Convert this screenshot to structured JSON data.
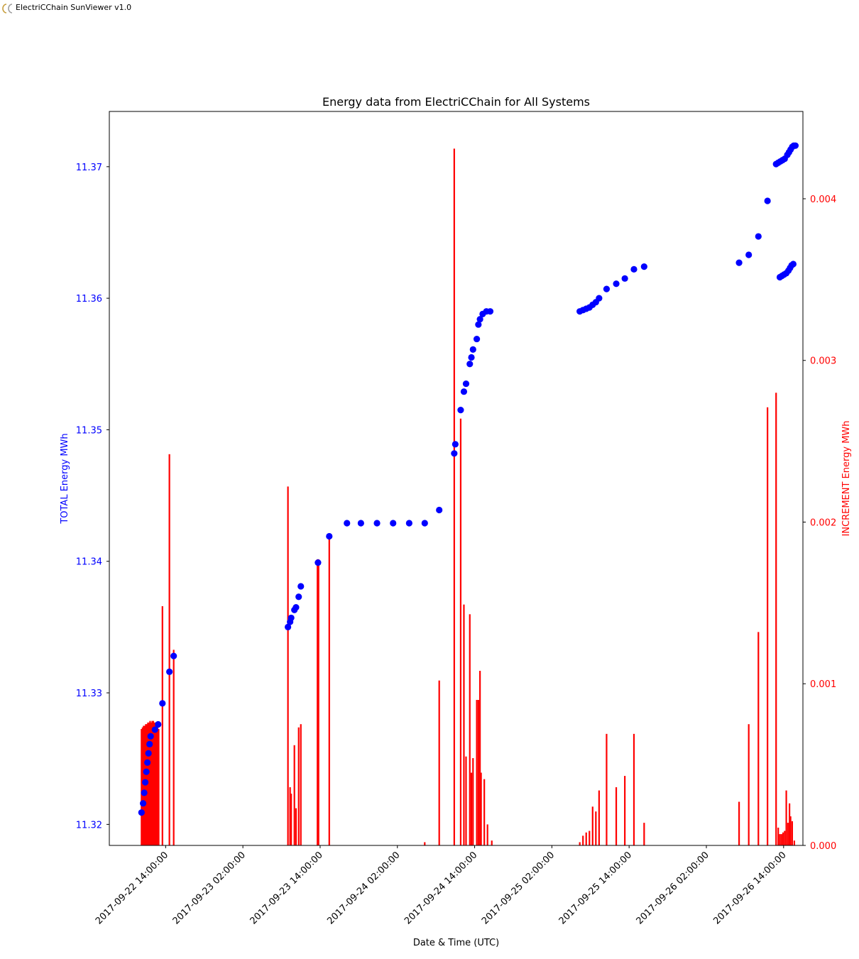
{
  "window": {
    "title": "ElectriCChain SunViewer v1.0",
    "icon": "cc-logo-icon"
  },
  "colors": {
    "total": "#0000ff",
    "increment": "#ff0000",
    "axis": "#000000"
  },
  "chart_data": {
    "type": "scatter+bar",
    "title": "Energy data from ElectriCChain for All Systems",
    "xlabel": "Date & Time (UTC)",
    "ylabel_left": "TOTAL Energy MWh",
    "ylabel_right": "INCREMENT Energy MWh",
    "xlim": [
      "2017-09-22 05:15",
      "2017-09-26 17:00"
    ],
    "ylim_left": [
      11.3184,
      11.3742
    ],
    "ylim_right": [
      0,
      0.00454
    ],
    "x_ticks": [
      "2017-09-22 14:00:00",
      "2017-09-23 02:00:00",
      "2017-09-23 14:00:00",
      "2017-09-24 02:00:00",
      "2017-09-24 14:00:00",
      "2017-09-25 02:00:00",
      "2017-09-25 14:00:00",
      "2017-09-26 02:00:00",
      "2017-09-26 14:00:00"
    ],
    "y_ticks_left": [
      "11.32",
      "11.33",
      "11.34",
      "11.35",
      "11.36",
      "11.37"
    ],
    "y_ticks_right": [
      "0.000",
      "0.001",
      "0.002",
      "0.003",
      "0.004"
    ],
    "grid": false,
    "series": [
      {
        "name": "TOTAL Energy MWh",
        "kind": "scatter",
        "axis": "left",
        "points": [
          [
            "2017-09-22 10:15",
            11.3209
          ],
          [
            "2017-09-22 10:30",
            11.3216
          ],
          [
            "2017-09-22 10:40",
            11.3224
          ],
          [
            "2017-09-22 10:50",
            11.3232
          ],
          [
            "2017-09-22 11:00",
            11.324
          ],
          [
            "2017-09-22 11:10",
            11.3247
          ],
          [
            "2017-09-22 11:20",
            11.3254
          ],
          [
            "2017-09-22 11:30",
            11.3261
          ],
          [
            "2017-09-22 11:40",
            11.3267
          ],
          [
            "2017-09-22 12:20",
            11.3272
          ],
          [
            "2017-09-22 12:50",
            11.3276
          ],
          [
            "2017-09-22 13:30",
            11.3292
          ],
          [
            "2017-09-22 14:35",
            11.3316
          ],
          [
            "2017-09-22 15:15",
            11.3328
          ],
          [
            "2017-09-23 09:00",
            11.335
          ],
          [
            "2017-09-23 09:20",
            11.3354
          ],
          [
            "2017-09-23 09:30",
            11.3357
          ],
          [
            "2017-09-23 10:00",
            11.3363
          ],
          [
            "2017-09-23 10:15",
            11.3365
          ],
          [
            "2017-09-23 10:40",
            11.3373
          ],
          [
            "2017-09-23 11:00",
            11.3381
          ],
          [
            "2017-09-23 13:40",
            11.3399
          ],
          [
            "2017-09-23 15:25",
            11.3419
          ],
          [
            "2017-09-23 18:10",
            11.3429
          ],
          [
            "2017-09-23 20:20",
            11.3429
          ],
          [
            "2017-09-23 22:50",
            11.3429
          ],
          [
            "2017-09-24 01:20",
            11.3429
          ],
          [
            "2017-09-24 03:50",
            11.3429
          ],
          [
            "2017-09-24 06:15",
            11.3429
          ],
          [
            "2017-09-24 08:30",
            11.3439
          ],
          [
            "2017-09-24 10:50",
            11.3482
          ],
          [
            "2017-09-24 11:00",
            11.3489
          ],
          [
            "2017-09-24 11:50",
            11.3515
          ],
          [
            "2017-09-24 12:20",
            11.3529
          ],
          [
            "2017-09-24 12:40",
            11.3535
          ],
          [
            "2017-09-24 13:15",
            11.355
          ],
          [
            "2017-09-24 13:30",
            11.3555
          ],
          [
            "2017-09-24 13:45",
            11.3561
          ],
          [
            "2017-09-24 14:20",
            11.3569
          ],
          [
            "2017-09-24 14:35",
            11.358
          ],
          [
            "2017-09-24 14:50",
            11.3584
          ],
          [
            "2017-09-24 15:15",
            11.3588
          ],
          [
            "2017-09-24 15:50",
            11.359
          ],
          [
            "2017-09-24 16:25",
            11.359
          ],
          [
            "2017-09-25 06:20",
            11.359
          ],
          [
            "2017-09-25 06:50",
            11.3591
          ],
          [
            "2017-09-25 07:20",
            11.3592
          ],
          [
            "2017-09-25 07:50",
            11.3593
          ],
          [
            "2017-09-25 08:20",
            11.3595
          ],
          [
            "2017-09-25 08:50",
            11.3597
          ],
          [
            "2017-09-25 09:20",
            11.36
          ],
          [
            "2017-09-25 10:30",
            11.3607
          ],
          [
            "2017-09-25 12:00",
            11.3611
          ],
          [
            "2017-09-25 13:20",
            11.3615
          ],
          [
            "2017-09-25 14:45",
            11.3622
          ],
          [
            "2017-09-25 16:20",
            11.3624
          ],
          [
            "2017-09-26 07:05",
            11.3627
          ],
          [
            "2017-09-26 08:35",
            11.3633
          ],
          [
            "2017-09-26 10:05",
            11.3647
          ],
          [
            "2017-09-26 11:30",
            11.3674
          ],
          [
            "2017-09-26 12:50",
            11.3702
          ],
          [
            "2017-09-26 13:10",
            11.3703
          ],
          [
            "2017-09-26 13:30",
            11.3704
          ],
          [
            "2017-09-26 13:50",
            11.3705
          ],
          [
            "2017-09-26 14:10",
            11.3706
          ],
          [
            "2017-09-26 14:35",
            11.3709
          ],
          [
            "2017-09-26 14:50",
            11.3711
          ],
          [
            "2017-09-26 15:05",
            11.3713
          ],
          [
            "2017-09-26 15:20",
            11.3715
          ],
          [
            "2017-09-26 15:35",
            11.3716
          ],
          [
            "2017-09-26 15:50",
            11.3716
          ],
          [
            "2017-09-26 13:25",
            11.3616
          ],
          [
            "2017-09-26 13:45",
            11.3617
          ],
          [
            "2017-09-26 14:05",
            11.3618
          ],
          [
            "2017-09-26 14:25",
            11.3619
          ],
          [
            "2017-09-26 14:45",
            11.3621
          ],
          [
            "2017-09-26 15:00",
            11.3623
          ],
          [
            "2017-09-26 15:15",
            11.3625
          ],
          [
            "2017-09-26 15:30",
            11.3626
          ]
        ]
      },
      {
        "name": "INCREMENT Energy MWh",
        "kind": "bar",
        "axis": "right",
        "points": [
          [
            "2017-09-22 10:15",
            0.00072
          ],
          [
            "2017-09-22 10:25",
            0.00073
          ],
          [
            "2017-09-22 10:35",
            0.00074
          ],
          [
            "2017-09-22 10:45",
            0.00074
          ],
          [
            "2017-09-22 10:55",
            0.00075
          ],
          [
            "2017-09-22 11:05",
            0.00075
          ],
          [
            "2017-09-22 11:15",
            0.00076
          ],
          [
            "2017-09-22 11:25",
            0.00076
          ],
          [
            "2017-09-22 11:35",
            0.00077
          ],
          [
            "2017-09-22 11:45",
            0.00076
          ],
          [
            "2017-09-22 11:55",
            0.00077
          ],
          [
            "2017-09-22 12:05",
            0.00077
          ],
          [
            "2017-09-22 12:15",
            0.00076
          ],
          [
            "2017-09-22 12:25",
            0.00076
          ],
          [
            "2017-09-22 12:35",
            0.00075
          ],
          [
            "2017-09-22 12:45",
            0.00076
          ],
          [
            "2017-09-22 12:55",
            0.00072
          ],
          [
            "2017-09-22 13:30",
            0.00148
          ],
          [
            "2017-09-22 14:35",
            0.00242
          ],
          [
            "2017-09-22 15:15",
            0.00121
          ],
          [
            "2017-09-23 09:00",
            0.00222
          ],
          [
            "2017-09-23 09:20",
            0.00036
          ],
          [
            "2017-09-23 09:30",
            0.00032
          ],
          [
            "2017-09-23 10:00",
            0.00062
          ],
          [
            "2017-09-23 10:15",
            0.00023
          ],
          [
            "2017-09-23 10:40",
            0.00073
          ],
          [
            "2017-09-23 11:00",
            0.00075
          ],
          [
            "2017-09-23 13:35",
            0.00177
          ],
          [
            "2017-09-23 13:45",
            0.00177
          ],
          [
            "2017-09-23 15:25",
            0.0019
          ],
          [
            "2017-09-24 06:15",
            2e-05
          ],
          [
            "2017-09-24 08:30",
            0.00102
          ],
          [
            "2017-09-24 10:50",
            0.00431
          ],
          [
            "2017-09-24 11:50",
            0.00264
          ],
          [
            "2017-09-24 12:20",
            0.00149
          ],
          [
            "2017-09-24 12:40",
            0.00055
          ],
          [
            "2017-09-24 13:15",
            0.00143
          ],
          [
            "2017-09-24 13:30",
            0.00045
          ],
          [
            "2017-09-24 13:45",
            0.00054
          ],
          [
            "2017-09-24 14:20",
            0.0009
          ],
          [
            "2017-09-24 14:35",
            0.0009
          ],
          [
            "2017-09-24 14:50",
            0.00108
          ],
          [
            "2017-09-24 15:00",
            0.00045
          ],
          [
            "2017-09-24 15:30",
            0.00041
          ],
          [
            "2017-09-24 16:00",
            0.00013
          ],
          [
            "2017-09-24 16:40",
            3e-05
          ],
          [
            "2017-09-25 06:20",
            2e-05
          ],
          [
            "2017-09-25 06:50",
            6e-05
          ],
          [
            "2017-09-25 07:20",
            8e-05
          ],
          [
            "2017-09-25 07:50",
            9e-05
          ],
          [
            "2017-09-25 08:20",
            0.00024
          ],
          [
            "2017-09-25 08:50",
            0.00021
          ],
          [
            "2017-09-25 09:20",
            0.00034
          ],
          [
            "2017-09-25 10:30",
            0.00069
          ],
          [
            "2017-09-25 12:00",
            0.00036
          ],
          [
            "2017-09-25 13:20",
            0.00043
          ],
          [
            "2017-09-25 14:45",
            0.00069
          ],
          [
            "2017-09-25 16:20",
            0.00014
          ],
          [
            "2017-09-26 07:05",
            0.00027
          ],
          [
            "2017-09-26 08:35",
            0.00075
          ],
          [
            "2017-09-26 10:05",
            0.00132
          ],
          [
            "2017-09-26 11:30",
            0.00271
          ],
          [
            "2017-09-26 12:50",
            0.0028
          ],
          [
            "2017-09-26 13:10",
            0.00011
          ],
          [
            "2017-09-26 13:25",
            7e-05
          ],
          [
            "2017-09-26 13:40",
            7e-05
          ],
          [
            "2017-09-26 13:55",
            8e-05
          ],
          [
            "2017-09-26 14:10",
            9e-05
          ],
          [
            "2017-09-26 14:25",
            0.00034
          ],
          [
            "2017-09-26 14:40",
            0.00014
          ],
          [
            "2017-09-26 14:55",
            0.00026
          ],
          [
            "2017-09-26 15:05",
            0.00018
          ],
          [
            "2017-09-26 15:20",
            0.00015
          ],
          [
            "2017-09-26 15:40",
            3e-05
          ]
        ]
      }
    ]
  }
}
